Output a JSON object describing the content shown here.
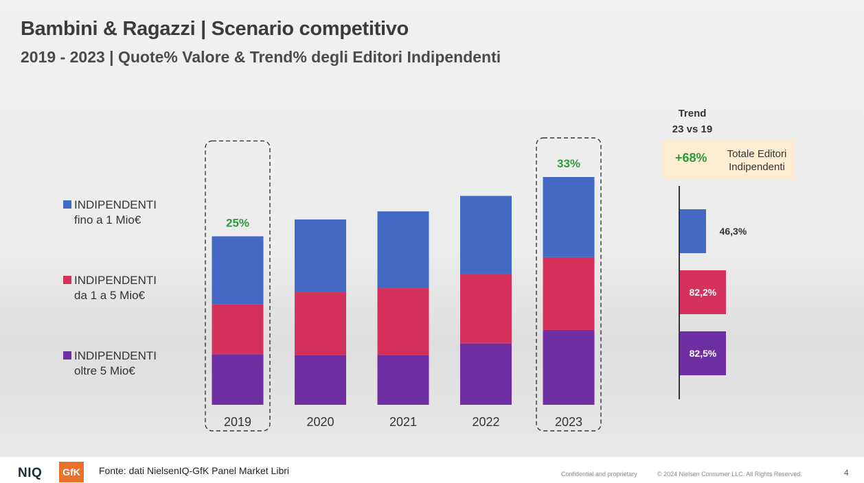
{
  "title": "Bambini & Ragazzi | Scenario competitivo",
  "subtitle": "2019 - 2023 | Quote% Valore & Trend% degli Editori Indipendenti",
  "legend": [
    {
      "line1": "INDIPENDENTI",
      "line2": "fino a 1 Mio€",
      "color": "#4469c4"
    },
    {
      "line1": "INDIPENDENTI",
      "line2": "da 1 a 5 Mio€",
      "color": "#d4315c"
    },
    {
      "line1": "INDIPENDENTI",
      "line2": "oltre 5 Mio€",
      "color": "#6f2ea1"
    }
  ],
  "chart_data": {
    "type": "bar",
    "stacked": true,
    "title": "",
    "xlabel": "",
    "ylabel": "",
    "categories": [
      "2019",
      "2020",
      "2021",
      "2022",
      "2023"
    ],
    "series": [
      {
        "name": "INDIPENDENTI oltre 5 Mio€",
        "color": "#6f2ea1",
        "values": [
          7.5,
          7.4,
          7.4,
          9.1,
          11.1
        ]
      },
      {
        "name": "INDIPENDENTI da 1 a 5 Mio€",
        "color": "#d4315c",
        "values": [
          7.4,
          9.3,
          9.9,
          10.3,
          10.8
        ]
      },
      {
        "name": "INDIPENDENTI fino a 1 Mio€",
        "color": "#4469c4",
        "values": [
          10.1,
          10.8,
          11.4,
          11.6,
          11.9
        ]
      }
    ],
    "totals_labels": [
      {
        "category": "2019",
        "label": "25%"
      },
      {
        "category": "2023",
        "label": "33%"
      }
    ],
    "highlighted_categories": [
      "2019",
      "2023"
    ],
    "label_color": "#2e9a3a",
    "ylim": [
      0,
      33.8
    ]
  },
  "trend": {
    "heading_line1": "Trend",
    "heading_line2": "23 vs 19",
    "total_value": "+68%",
    "total_label": "Totale Editori Indipendenti",
    "bars": [
      {
        "value": 46.3,
        "label": "46,3%",
        "color": "#4469c4",
        "label_color": "#333333"
      },
      {
        "value": 82.2,
        "label": "82,2%",
        "color": "#d4315c",
        "label_color": "#ffffff"
      },
      {
        "value": 82.5,
        "label": "82,5%",
        "color": "#6f2ea1",
        "label_color": "#ffffff"
      }
    ]
  },
  "footer": {
    "logo_niq": "NIQ",
    "logo_gfk": "GfK",
    "source": "Fonte: dati  NielsenIQ-GfK Panel Market Libri",
    "confidential": "Confidential and proprietary",
    "copyright": "© 2024 Nielsen Consumer LLC. All Rights Reserved.",
    "page_number": "4"
  }
}
